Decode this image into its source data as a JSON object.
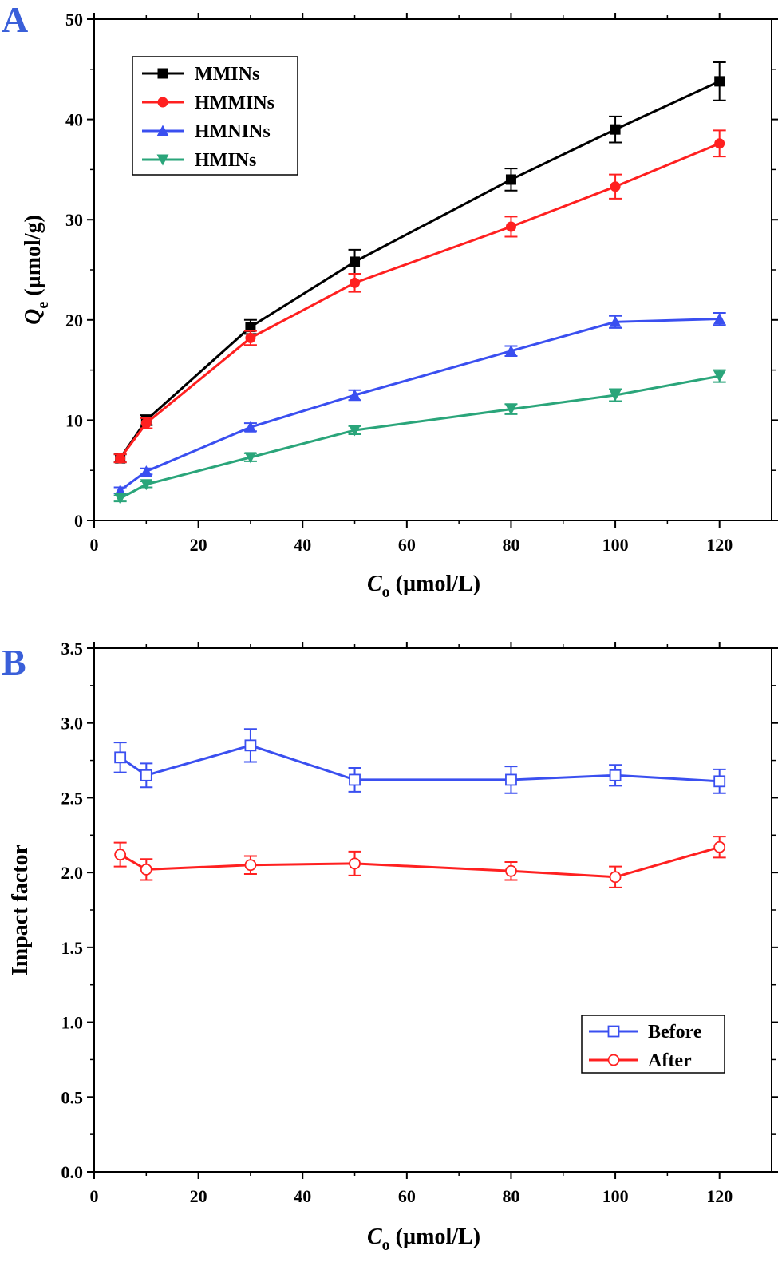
{
  "chart_data": [
    {
      "panel": "A",
      "type": "line",
      "x": [
        5,
        10,
        30,
        50,
        80,
        100,
        120
      ],
      "xlabel_main": "C",
      "xlabel_sub": "o",
      "xlabel_unit": " (µmol/L)",
      "ylabel_main": "Q",
      "ylabel_sub": "e",
      "ylabel_unit": " (µmol/g)",
      "xlim": [
        0,
        130
      ],
      "ylim": [
        0,
        50
      ],
      "xticks": [
        0,
        20,
        40,
        60,
        80,
        100,
        120
      ],
      "yticks": [
        0,
        10,
        20,
        30,
        40,
        50
      ],
      "grid": false,
      "legend_position": "top-left",
      "series": [
        {
          "name": "MMINs",
          "color": "#000000",
          "marker": "square",
          "values": [
            6.2,
            10.0,
            19.3,
            25.8,
            34.0,
            39.0,
            43.8
          ],
          "errors": [
            0.4,
            0.5,
            0.7,
            1.2,
            1.1,
            1.3,
            1.9
          ]
        },
        {
          "name": "HMMINs",
          "color": "#ff2020",
          "marker": "circle",
          "values": [
            6.2,
            9.7,
            18.2,
            23.7,
            29.3,
            33.3,
            37.6
          ],
          "errors": [
            0.4,
            0.5,
            0.7,
            0.9,
            1.0,
            1.2,
            1.3
          ]
        },
        {
          "name": "HMNINs",
          "color": "#3a4ff0",
          "marker": "triangle-up",
          "values": [
            3.0,
            4.9,
            9.3,
            12.5,
            16.9,
            19.8,
            20.1
          ],
          "errors": [
            0.3,
            0.3,
            0.4,
            0.5,
            0.5,
            0.6,
            0.6
          ]
        },
        {
          "name": "HMINs",
          "color": "#2aa57a",
          "marker": "triangle-down",
          "values": [
            2.2,
            3.6,
            6.3,
            9.0,
            11.1,
            12.5,
            14.4
          ],
          "errors": [
            0.3,
            0.3,
            0.4,
            0.4,
            0.5,
            0.6,
            0.6
          ]
        }
      ]
    },
    {
      "panel": "B",
      "type": "line",
      "x": [
        5,
        10,
        30,
        50,
        80,
        100,
        120
      ],
      "xlabel_main": "C",
      "xlabel_sub": "o",
      "xlabel_unit": " (µmol/L)",
      "ylabel": "Impact factor",
      "xlim": [
        0,
        130
      ],
      "ylim": [
        0.0,
        3.5
      ],
      "xticks": [
        0,
        20,
        40,
        60,
        80,
        100,
        120
      ],
      "yticks": [
        "0.0",
        "0.5",
        "1.0",
        "1.5",
        "2.0",
        "2.5",
        "3.0",
        "3.5"
      ],
      "grid": false,
      "legend_position": "bottom-right",
      "series": [
        {
          "name": "Before",
          "color": "#3a4ff0",
          "marker": "open-square",
          "values": [
            2.77,
            2.65,
            2.85,
            2.62,
            2.62,
            2.65,
            2.61
          ],
          "errors": [
            0.1,
            0.08,
            0.11,
            0.08,
            0.09,
            0.07,
            0.08
          ]
        },
        {
          "name": "After",
          "color": "#ff2020",
          "marker": "open-circle",
          "values": [
            2.12,
            2.02,
            2.05,
            2.06,
            2.01,
            1.97,
            2.17
          ],
          "errors": [
            0.08,
            0.07,
            0.06,
            0.08,
            0.06,
            0.07,
            0.07
          ]
        }
      ]
    }
  ]
}
